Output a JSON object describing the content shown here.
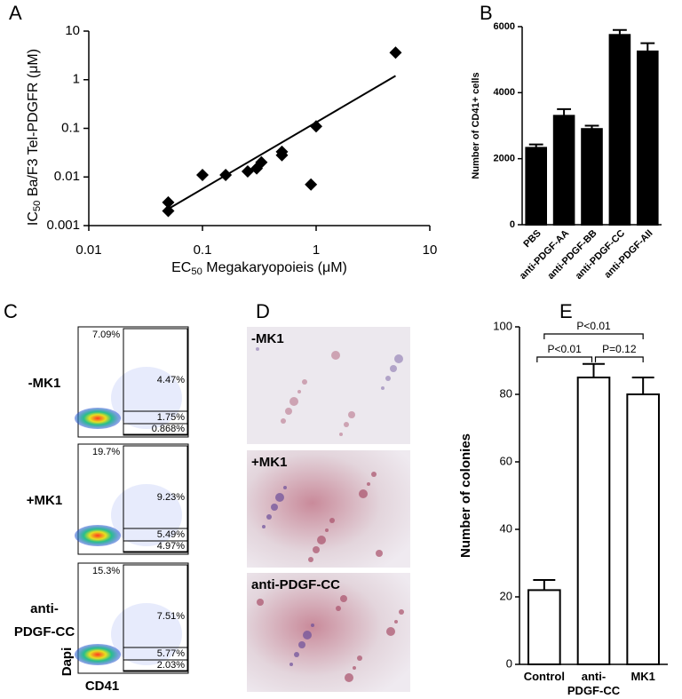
{
  "chart_data": [
    {
      "type": "scatter",
      "letter": "A",
      "xlabel": {
        "text": "EC",
        "sub": "50",
        "rest": " Megakaryopoieis (μM)"
      },
      "ylabel": {
        "text": "IC",
        "sub": "50",
        "rest": " Ba/F3 Tel-PDGFR (μM)"
      },
      "xscale": "log",
      "yscale": "log",
      "xlim": [
        0.01,
        10
      ],
      "ylim": [
        0.001,
        10
      ],
      "xticks": [
        0.01,
        0.1,
        1,
        10
      ],
      "yticks": [
        0.001,
        0.01,
        0.1,
        1,
        10
      ],
      "series": [
        {
          "color": "#000000",
          "marker": "diamond",
          "x": [
            0.05,
            0.05,
            0.1,
            0.16,
            0.25,
            0.3,
            0.33,
            0.5,
            0.5,
            0.9,
            1,
            5
          ],
          "values": [
            0.003,
            0.002,
            0.011,
            0.011,
            0.013,
            0.015,
            0.02,
            0.028,
            0.033,
            0.007,
            0.11,
            3.6
          ]
        }
      ],
      "fit": {
        "color": "#000000",
        "x": [
          0.05,
          5
        ],
        "values": [
          0.0022,
          1.2
        ]
      }
    },
    {
      "type": "bar",
      "letter": "B",
      "ylabel": "Number of CD41+ cells",
      "categories": [
        "PBS",
        "anti-PDGF-AA",
        "anti-PDGF-BB",
        "anti-PDGF-CC",
        "anti-PDGF-AII"
      ],
      "values": [
        2330,
        3300,
        2900,
        5750,
        5250
      ],
      "error": [
        100,
        200,
        100,
        150,
        250
      ],
      "color": "#000000",
      "edgecolor": "#000000",
      "xtick_rotation": 45,
      "ylim": [
        0,
        6000
      ],
      "yticks": [
        0,
        2000,
        4000,
        6000
      ]
    },
    {
      "type": "bar",
      "letter": "E",
      "ylabel": "Number of colonies",
      "categories": [
        "Control",
        "anti-\nPDGF-CC",
        "MK1"
      ],
      "values": [
        22,
        85,
        80
      ],
      "error": [
        3,
        4,
        5
      ],
      "color": "#ffffff",
      "edgecolor": "#000000",
      "xtick_rotation": 0,
      "ylim": [
        0,
        100
      ],
      "yticks": [
        0,
        20,
        40,
        60,
        80,
        100
      ],
      "annotations": [
        "P<0.01",
        "P<0.01",
        "P=0.12"
      ]
    }
  ],
  "flow": {
    "letter": "C",
    "ylabel": "Dapi",
    "xlabel": "CD41",
    "rows": [
      {
        "label": "-MK1",
        "gates": [
          "7.09%",
          "4.47%",
          "1.75%",
          "0.868%"
        ]
      },
      {
        "label": "+MK1",
        "gates": [
          "19.7%",
          "9.23%",
          "5.49%",
          "4.97%"
        ]
      },
      {
        "label": "anti-\nPDGF-CC",
        "gates": [
          "15.3%",
          "7.51%",
          "5.77%",
          "2.03%"
        ]
      }
    ]
  },
  "micro": {
    "letter": "D",
    "labels": [
      "-MK1",
      "+MK1",
      "anti-PDGF-CC"
    ]
  }
}
